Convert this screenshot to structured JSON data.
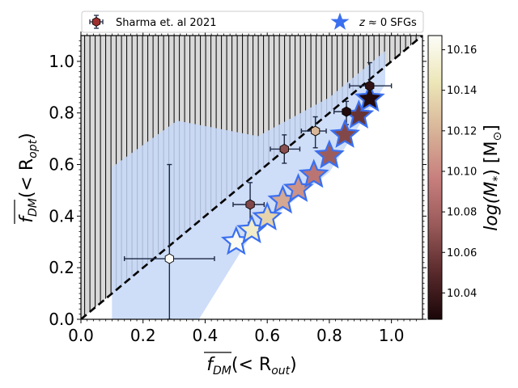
{
  "chart_data": {
    "type": "scatter",
    "xlim": [
      0.0,
      1.1
    ],
    "ylim": [
      0.0,
      1.1
    ],
    "x_ticks": [
      "0.0",
      "0.2",
      "0.4",
      "0.6",
      "0.8",
      "1.0"
    ],
    "y_ticks": [
      "0.0",
      "0.2",
      "0.4",
      "0.6",
      "0.8",
      "1.0"
    ],
    "xlabel": {
      "main": "f",
      "sub": "DM",
      "paren": "(< R",
      "rsub": "out",
      "close": ")"
    },
    "ylabel": {
      "main": "f",
      "sub": "DM",
      "paren": "(< R",
      "rsub": "opt",
      "close": ")"
    },
    "legend": {
      "sharma_label": "Sharma et. al 2021",
      "sfg_prefix": "z",
      "sfg_suffix": "≈ 0 SFGs"
    },
    "colorbar": {
      "label_main": "log(M",
      "label_sub": "*",
      "label_unit": ") [M",
      "label_sun": "⊙",
      "label_close": "]",
      "range": [
        10.027,
        10.167
      ],
      "ticks": [
        "10.04",
        "10.06",
        "10.08",
        "10.10",
        "10.12",
        "10.14",
        "10.16"
      ],
      "colors": [
        "#1a0608",
        "#5a2a2c",
        "#9a5a5a",
        "#c8807e",
        "#d8b498",
        "#ece6b8",
        "#fdfdf8"
      ]
    },
    "one_to_one_line": {
      "from": [
        0.0,
        0.0
      ],
      "to": [
        1.1,
        1.1
      ],
      "style": "dashed"
    },
    "hatched_region": "above 1:1 line (forbidden)",
    "band": {
      "upper": [
        [
          0.1,
          0.59
        ],
        [
          0.31,
          0.77
        ],
        [
          0.57,
          0.71
        ],
        [
          0.8,
          0.86
        ],
        [
          0.98,
          1.04
        ]
      ],
      "lower": [
        [
          0.98,
          0.91
        ],
        [
          0.8,
          0.57
        ],
        [
          0.55,
          0.33
        ],
        [
          0.38,
          0.0
        ],
        [
          0.1,
          0.0
        ]
      ],
      "color": "#c6d7f7"
    },
    "series": [
      {
        "name": "Sharma et. al 2021",
        "marker": "hexagon",
        "points": [
          {
            "x": 0.285,
            "y": 0.235,
            "xerr_lo": 0.145,
            "xerr_hi": 0.145,
            "yerr_lo": 0.235,
            "yerr_hi": 0.365,
            "logm": 10.167
          },
          {
            "x": 0.545,
            "y": 0.445,
            "xerr_lo": 0.055,
            "xerr_hi": 0.045,
            "yerr_lo": 0.07,
            "yerr_hi": 0.085,
            "logm": 10.065
          },
          {
            "x": 0.655,
            "y": 0.66,
            "xerr_lo": 0.045,
            "xerr_hi": 0.05,
            "yerr_lo": 0.055,
            "yerr_hi": 0.055,
            "logm": 10.068
          },
          {
            "x": 0.755,
            "y": 0.73,
            "xerr_lo": 0.045,
            "xerr_hi": 0.035,
            "yerr_lo": 0.065,
            "yerr_hi": 0.055,
            "logm": 10.122
          },
          {
            "x": 0.855,
            "y": 0.805,
            "xerr_lo": 0.04,
            "xerr_hi": 0.03,
            "yerr_lo": 0.05,
            "yerr_hi": 0.04,
            "logm": 10.03
          },
          {
            "x": 0.93,
            "y": 0.905,
            "xerr_lo": 0.065,
            "xerr_hi": 0.07,
            "yerr_lo": 0.055,
            "yerr_hi": 0.09,
            "logm": 10.035
          }
        ]
      },
      {
        "name": "z ≈ 0 SFGs",
        "marker": "star",
        "points": [
          {
            "x": 0.5,
            "y": 0.3,
            "logm": 10.165
          },
          {
            "x": 0.55,
            "y": 0.345,
            "logm": 10.15
          },
          {
            "x": 0.6,
            "y": 0.395,
            "logm": 10.135
          },
          {
            "x": 0.65,
            "y": 0.46,
            "logm": 10.115
          },
          {
            "x": 0.7,
            "y": 0.505,
            "logm": 10.105
          },
          {
            "x": 0.75,
            "y": 0.56,
            "logm": 10.09
          },
          {
            "x": 0.8,
            "y": 0.635,
            "logm": 10.075
          },
          {
            "x": 0.85,
            "y": 0.715,
            "logm": 10.065
          },
          {
            "x": 0.895,
            "y": 0.79,
            "logm": 10.055
          },
          {
            "x": 0.93,
            "y": 0.855,
            "logm": 10.03
          }
        ]
      }
    ]
  }
}
